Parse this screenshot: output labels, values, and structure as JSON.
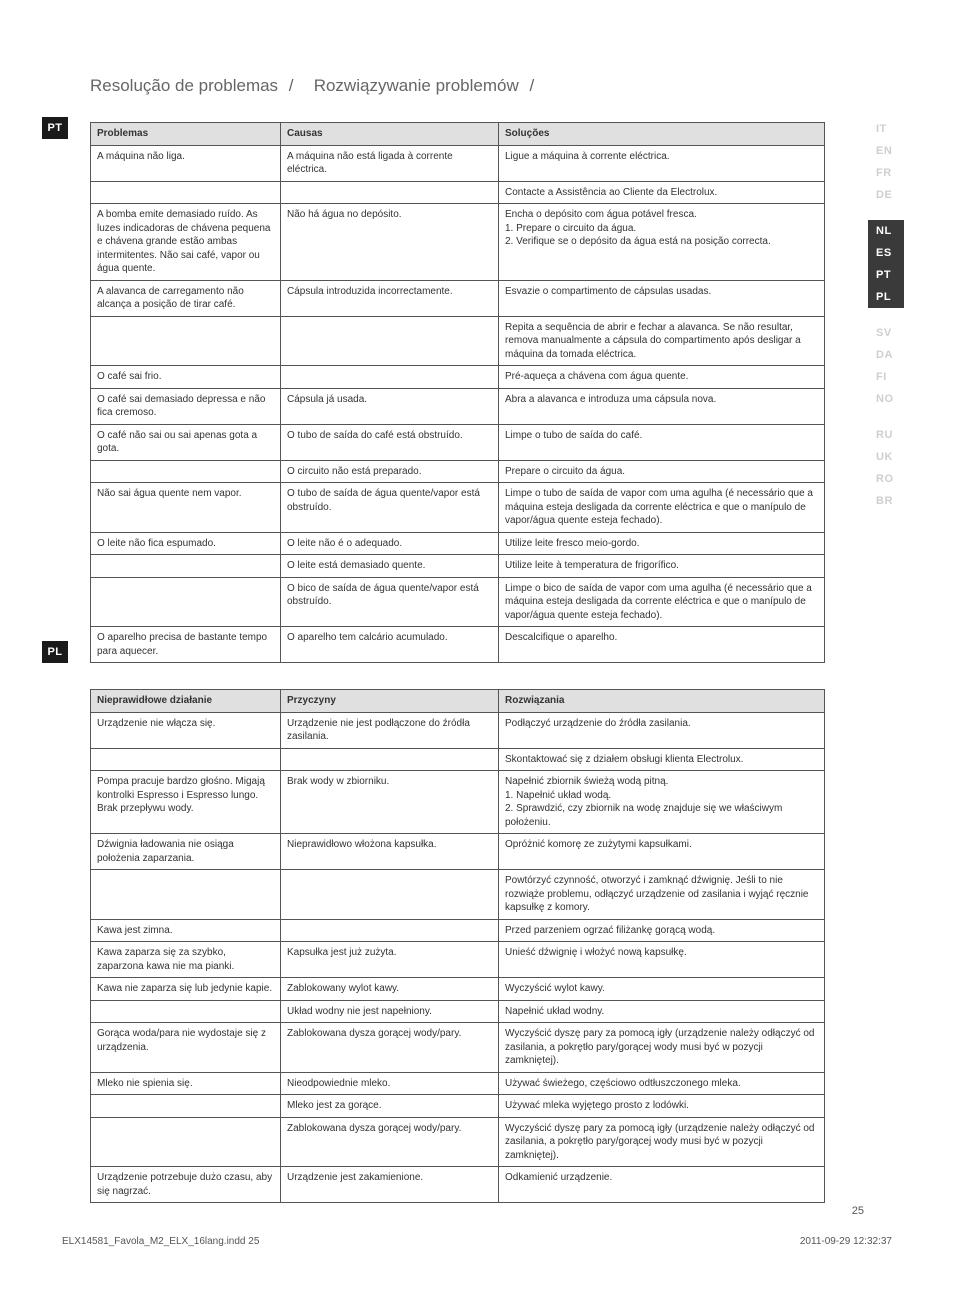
{
  "title": {
    "pt": "Resolução de problemas",
    "pl": "Rozwiązywanie problemów",
    "sep": "/"
  },
  "badges": {
    "pt": "PT",
    "pl": "PL"
  },
  "langcol": [
    {
      "items": [
        "IT",
        "EN",
        "FR",
        "DE"
      ],
      "active": false
    },
    {
      "items": [
        "NL",
        "ES",
        "PT",
        "PL"
      ],
      "active": true
    },
    {
      "items": [
        "SV",
        "DA",
        "FI",
        "NO"
      ],
      "active": false
    },
    {
      "items": [
        "RU",
        "UK",
        "RO",
        "BR"
      ],
      "active": false
    }
  ],
  "pt_table": {
    "headers": [
      "Problemas",
      "Causas",
      "Soluções"
    ],
    "rows": [
      [
        "A máquina não liga.",
        "A máquina não está ligada à corrente eléctrica.",
        "Ligue a máquina à corrente eléctrica."
      ],
      [
        "",
        "",
        "Contacte a Assistência ao Cliente da Electrolux."
      ],
      [
        "A bomba emite demasiado ruído. As luzes indicadoras de chávena pequena e chávena grande estão ambas intermitentes. Não sai café, vapor ou água quente.",
        "Não há água no depósito.",
        "Encha o depósito com água potável fresca.\n1. Prepare o circuito da água.\n2. Verifique se o depósito da água está na posição correcta."
      ],
      [
        "A alavanca de carregamento não alcança a posição de tirar café.",
        "Cápsula introduzida incorrectamente.",
        "Esvazie o compartimento de cápsulas usadas."
      ],
      [
        "",
        "",
        "Repita a sequência de abrir e fechar a alavanca. Se não resultar, remova manualmente a cápsula do compartimento após desligar a máquina da tomada eléctrica."
      ],
      [
        "O café sai frio.",
        "",
        "Pré-aqueça a chávena com água quente."
      ],
      [
        "O café sai demasiado depressa e não fica cremoso.",
        "Cápsula já usada.",
        "Abra a alavanca e introduza uma cápsula nova."
      ],
      [
        "O café não sai ou sai apenas gota a gota.",
        "O tubo de saída do café está obstruído.",
        "Limpe o tubo de saída do café."
      ],
      [
        "",
        "O circuito não está preparado.",
        "Prepare o circuito da água."
      ],
      [
        "Não sai água quente nem vapor.",
        "O tubo de saída de água quente/vapor está obstruído.",
        "Limpe o tubo de saída de vapor com uma agulha (é necessário que a máquina esteja desligada da corrente eléctrica e que o manípulo de vapor/água quente esteja fechado)."
      ],
      [
        "O leite não fica espumado.",
        "O leite não é o adequado.",
        "Utilize leite fresco meio-gordo."
      ],
      [
        "",
        "O leite está demasiado quente.",
        "Utilize leite à temperatura de frigorífico."
      ],
      [
        "",
        "O bico de saída de água quente/vapor está obstruído.",
        "Limpe o bico de saída de vapor com uma agulha (é necessário que a máquina esteja desligada da corrente eléctrica e que o manípulo de vapor/água quente esteja fechado)."
      ],
      [
        "O aparelho precisa de bastante tempo para aquecer.",
        "O aparelho tem calcário acumulado.",
        "Descalcifique o aparelho."
      ]
    ]
  },
  "pl_table": {
    "headers": [
      "Nieprawidłowe działanie",
      "Przyczyny",
      "Rozwiązania"
    ],
    "rows": [
      [
        "Urządzenie nie włącza się.",
        "Urządzenie nie jest podłączone do źródła zasilania.",
        "Podłączyć urządzenie do źródła zasilania."
      ],
      [
        "",
        "",
        "Skontaktować się z działem obsługi klienta Electrolux."
      ],
      [
        "Pompa pracuje bardzo głośno. Migają kontrolki Espresso i Espresso lungo. Brak przepływu wody.",
        "Brak wody w zbiorniku.",
        "Napełnić zbiornik świeżą wodą pitną.\n1. Napełnić układ wodą.\n2. Sprawdzić, czy zbiornik na wodę znajduje się we właściwym położeniu."
      ],
      [
        "Dźwignia ładowania nie osiąga położenia zaparzania.",
        "Nieprawidłowo włożona kapsułka.",
        "Opróżnić komorę ze zużytymi kapsułkami."
      ],
      [
        "",
        "",
        "Powtórzyć czynność, otworzyć i zamknąć dźwignię. Jeśli to nie rozwiąże problemu, odłączyć urządzenie od zasilania i wyjąć ręcznie kapsułkę z komory."
      ],
      [
        "Kawa jest zimna.",
        "",
        "Przed parzeniem ogrzać filiżankę gorącą wodą."
      ],
      [
        "Kawa zaparza się za szybko, zaparzona kawa nie ma pianki.",
        "Kapsułka jest już zużyta.",
        "Unieść dźwignię i włożyć nową kapsułkę."
      ],
      [
        "Kawa nie zaparza się lub jedynie kapie.",
        "Zablokowany wylot kawy.",
        "Wyczyścić wylot kawy."
      ],
      [
        "",
        "Układ wodny nie jest napełniony.",
        "Napełnić układ wodny."
      ],
      [
        "Gorąca woda/para nie wydostaje się z urządzenia.",
        "Zablokowana dysza gorącej wody/pary.",
        "Wyczyścić dyszę pary za pomocą igły (urządzenie należy odłączyć od zasilania, a pokrętło pary/gorącej wody musi być w pozycji zamkniętej)."
      ],
      [
        "Mleko nie spienia się.",
        "Nieodpowiednie mleko.",
        "Używać świeżego, częściowo odtłuszczonego mleka."
      ],
      [
        "",
        "Mleko jest za gorące.",
        "Używać mleka wyjętego prosto z lodówki."
      ],
      [
        "",
        "Zablokowana dysza gorącej wody/pary.",
        "Wyczyścić dyszę pary za pomocą igły (urządzenie należy odłączyć od zasilania, a pokrętło pary/gorącej wody musi być w pozycji zamkniętej)."
      ],
      [
        "Urządzenie potrzebuje dużo czasu, aby się nagrzać.",
        "Urządzenie jest zakamienione.",
        "Odkamienić urządzenie."
      ]
    ]
  },
  "pagenum": "25",
  "footer": {
    "left": "ELX14581_Favola_M2_ELX_16lang.indd   25",
    "right": "2011-09-29   12:32:37"
  }
}
